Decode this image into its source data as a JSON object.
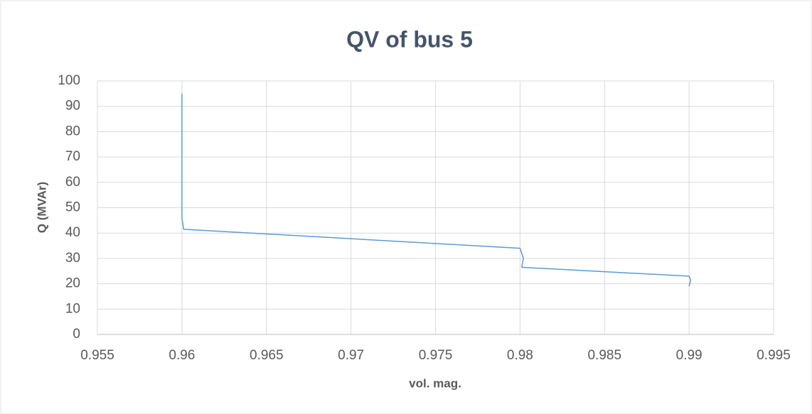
{
  "chart_data": {
    "type": "line",
    "title": "QV of bus 5",
    "xlabel": "vol. mag.",
    "ylabel": "Q (MVAr)",
    "series": [
      {
        "name": "QV",
        "color": "#5b9bd5",
        "x": [
          0.96,
          0.96,
          0.9601,
          0.98,
          0.9802,
          0.9801,
          0.99,
          0.9901,
          0.99
        ],
        "values": [
          95,
          46,
          41.5,
          34,
          30,
          26.5,
          23,
          21.5,
          19
        ]
      }
    ],
    "xlim": [
      0.955,
      0.995
    ],
    "xticks": [
      0.955,
      0.96,
      0.965,
      0.97,
      0.975,
      0.98,
      0.985,
      0.99,
      0.995
    ],
    "ylim": [
      0,
      100
    ],
    "yticks": [
      0,
      10,
      20,
      30,
      40,
      50,
      60,
      70,
      80,
      90,
      100
    ],
    "grid": true
  }
}
